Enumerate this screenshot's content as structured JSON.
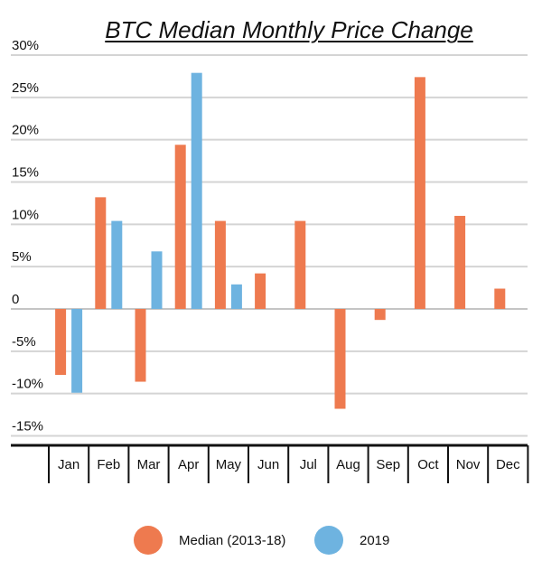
{
  "chart_data": {
    "type": "bar",
    "title": "BTC Median Monthly  Price Change",
    "categories": [
      "Jan",
      "Feb",
      "Mar",
      "Apr",
      "May",
      "Jun",
      "Jul",
      "Aug",
      "Sep",
      "Oct",
      "Nov",
      "Dec"
    ],
    "series": [
      {
        "name": "Median (2013-18)",
        "color": "#ee7a4f",
        "values": [
          -7.8,
          13.2,
          -8.6,
          19.4,
          10.4,
          4.2,
          10.4,
          -11.8,
          -1.3,
          27.4,
          11.0,
          2.4
        ]
      },
      {
        "name": "2019",
        "color": "#6eb3e0",
        "values": [
          -9.9,
          10.4,
          6.8,
          27.9,
          2.9,
          null,
          null,
          null,
          null,
          null,
          null,
          null
        ]
      }
    ],
    "ylim": [
      -16,
      31
    ],
    "yticks": [
      30,
      25,
      20,
      15,
      10,
      5,
      0,
      -5,
      -10,
      -15
    ],
    "ytick_labels": [
      "30%",
      "25%",
      "20%",
      "15%",
      "10%",
      "5%",
      "0",
      "-5%",
      "-10%",
      "-15%"
    ],
    "xlabel": "",
    "ylabel": "",
    "grid": true,
    "legend": "bottom"
  }
}
